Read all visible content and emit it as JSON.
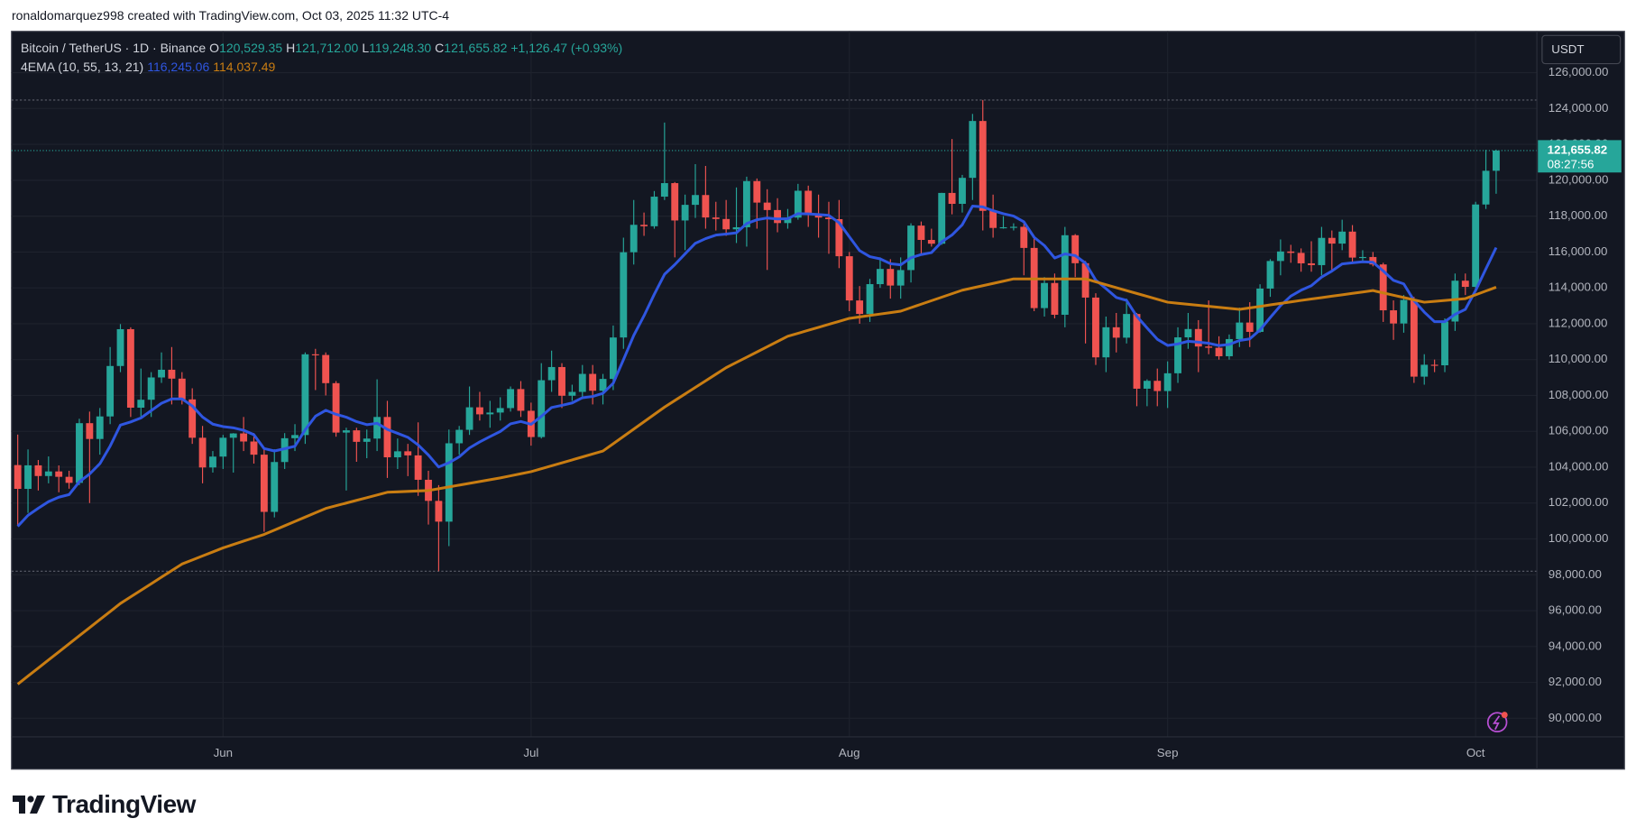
{
  "header": {
    "attribution": "ronaldomarquez998 created with TradingView.com, Oct 03, 2025 11:32 UTC-4"
  },
  "chart_data": {
    "type": "candlestick",
    "symbol": "Bitcoin / TetherUS · 1D · Binance",
    "ohlc_legend": [
      {
        "key": "O",
        "value": "120,529.35"
      },
      {
        "key": "H",
        "value": "121,712.00"
      },
      {
        "key": "L",
        "value": "119,248.30"
      },
      {
        "key": "C",
        "value": "121,655.82"
      }
    ],
    "change": "+1,126.47 (+0.93%)",
    "currency": "USDT",
    "last_price_label": "121,655.82",
    "countdown": "08:27:56",
    "up_color": "#26a69a",
    "down_color": "#ef5350",
    "grid": true,
    "categories": [
      null,
      null,
      null,
      null,
      null,
      null,
      null,
      null,
      null,
      null,
      null,
      null,
      null,
      null,
      null,
      null,
      null,
      null,
      null,
      null,
      "Jun",
      null,
      null,
      null,
      null,
      null,
      null,
      null,
      null,
      null,
      null,
      null,
      null,
      null,
      null,
      null,
      null,
      null,
      null,
      null,
      null,
      null,
      null,
      null,
      null,
      null,
      null,
      null,
      null,
      null,
      "Jul",
      null,
      null,
      null,
      null,
      null,
      null,
      null,
      null,
      null,
      null,
      null,
      null,
      null,
      null,
      null,
      null,
      null,
      null,
      null,
      null,
      null,
      null,
      null,
      null,
      null,
      null,
      null,
      null,
      null,
      null,
      "Aug",
      null,
      null,
      null,
      null,
      null,
      null,
      null,
      null,
      null,
      null,
      null,
      null,
      null,
      null,
      null,
      null,
      null,
      null,
      null,
      null,
      null,
      null,
      null,
      null,
      null,
      null,
      null,
      null,
      null,
      null,
      "Sep",
      null,
      null,
      null,
      null,
      null,
      null,
      null,
      null,
      null,
      null,
      null,
      null,
      null,
      null,
      null,
      null,
      null,
      null,
      null,
      null,
      null,
      null,
      null,
      null,
      null,
      null,
      null,
      null,
      null,
      "Oct",
      null,
      null
    ],
    "open": [
      104118,
      102791,
      104103,
      103507,
      103763,
      103463,
      103126,
      106454,
      105573,
      106830,
      109643,
      111696,
      107318,
      107761,
      109004,
      109434,
      108938,
      107781,
      105641,
      103985,
      104591,
      105642,
      105882,
      105432,
      104697,
      101508,
      104288,
      105615,
      105793,
      110295,
      110257,
      108686,
      105930,
      106055,
      105414,
      105595,
      106800,
      104551,
      104886,
      104658,
      103297,
      102120,
      100963,
      105333,
      106083,
      107340,
      106947,
      107047,
      107296,
      108356,
      107146,
      105681,
      108850,
      109584,
      107984,
      108198,
      109203,
      108262,
      108922,
      111233,
      115987,
      117516,
      117435,
      119086,
      119841,
      117758,
      118630,
      119177,
      117925,
      117840,
      117265,
      117380,
      119954,
      118755,
      118340,
      117614,
      117919,
      119415,
      118062,
      117922,
      117832,
      115764,
      113297,
      112546,
      114208,
      115055,
      114129,
      114992,
      117472,
      116674,
      116462,
      119294,
      118686,
      120134,
      123306,
      118295,
      117342,
      117380,
      117405,
      116227,
      112872,
      114271,
      112500,
      116935,
      115374,
      113458,
      110124,
      111802,
      111222,
      112544,
      108377,
      108816,
      108246,
      109237,
      111240,
      111705,
      110730,
      110659,
      110187,
      111144,
      112066,
      111546,
      113960,
      115498,
      116029,
      115950,
      115368,
      115268,
      116788,
      116468,
      117137,
      115688,
      115721,
      115306,
      112748,
      112014,
      113328,
      109049,
      109712,
      109682,
      112122,
      114400,
      114056,
      118649,
      120529.35
    ],
    "high": [
      105819,
      104990,
      104400,
      104600,
      104100,
      103800,
      106700,
      107100,
      107300,
      110700,
      111980,
      111800,
      109500,
      109300,
      110400,
      110700,
      109300,
      108400,
      106300,
      104900,
      105800,
      105900,
      106800,
      105900,
      105000,
      105000,
      105900,
      106400,
      110400,
      110600,
      110400,
      108800,
      106200,
      106200,
      106100,
      108900,
      107700,
      105600,
      105300,
      106500,
      103800,
      103000,
      106100,
      106300,
      108500,
      108200,
      107700,
      107900,
      108500,
      108800,
      107600,
      109800,
      110500,
      109800,
      108600,
      109700,
      109700,
      109200,
      111900,
      116800,
      118900,
      118200,
      119400,
      123218,
      119900,
      119200,
      120900,
      120800,
      118800,
      118900,
      119600,
      120200,
      120100,
      119500,
      119000,
      118400,
      119800,
      119700,
      119200,
      118800,
      118900,
      116000,
      114100,
      114500,
      115700,
      115600,
      115700,
      117600,
      117700,
      117300,
      119300,
      122300,
      120300,
      123700,
      124474,
      119200,
      118000,
      117600,
      117600,
      116800,
      114600,
      114800,
      117400,
      117000,
      115500,
      113700,
      112400,
      112600,
      113400,
      112600,
      108900,
      109500,
      109900,
      111800,
      112600,
      112200,
      113300,
      111300,
      111400,
      112900,
      113200,
      114200,
      115600,
      116700,
      116400,
      116200,
      116600,
      117400,
      117200,
      117800,
      117500,
      116100,
      116000,
      115400,
      113300,
      113600,
      113500,
      110300,
      110000,
      112300,
      114800,
      114800,
      118800,
      121700,
      121712
    ],
    "low": [
      100718,
      101450,
      102700,
      103100,
      102600,
      102800,
      103000,
      102000,
      104700,
      106400,
      109300,
      106800,
      106800,
      106800,
      108700,
      107500,
      107500,
      105300,
      103100,
      103700,
      103900,
      103700,
      104900,
      104200,
      100400,
      101200,
      103900,
      104900,
      105300,
      108300,
      108000,
      105700,
      102700,
      104300,
      104500,
      104900,
      103400,
      103900,
      103500,
      102400,
      100800,
      98200,
      99600,
      104700,
      105800,
      106600,
      106200,
      106600,
      107100,
      106800,
      105200,
      105600,
      108200,
      107300,
      107700,
      107800,
      107500,
      107500,
      108300,
      110600,
      115300,
      116900,
      117300,
      118900,
      115700,
      116100,
      117900,
      117300,
      117200,
      116900,
      116500,
      116300,
      117300,
      115000,
      117100,
      117300,
      117800,
      117400,
      116800,
      115900,
      115100,
      112700,
      112000,
      112100,
      114000,
      113400,
      113400,
      114300,
      115900,
      116300,
      116400,
      118100,
      118200,
      118900,
      117200,
      116800,
      117300,
      117200,
      114700,
      112700,
      112400,
      112300,
      111800,
      114600,
      110900,
      109700,
      109300,
      110400,
      110900,
      107400,
      107400,
      107400,
      107300,
      108700,
      110600,
      109300,
      110300,
      110000,
      110000,
      110700,
      110700,
      111500,
      113500,
      114700,
      115400,
      114900,
      114900,
      114700,
      114900,
      116100,
      115400,
      115500,
      115200,
      112100,
      111100,
      111500,
      108700,
      108600,
      109300,
      109300,
      111600,
      113600,
      113900,
      118400,
      119248.3
    ],
    "close": [
      102791,
      104103,
      103507,
      103763,
      103463,
      103126,
      106454,
      105573,
      106830,
      109643,
      111696,
      107318,
      107761,
      109004,
      109434,
      108938,
      107781,
      105641,
      103985,
      104591,
      105642,
      105882,
      105432,
      104697,
      101508,
      104288,
      105615,
      105793,
      110295,
      110257,
      108686,
      105930,
      106055,
      105414,
      105595,
      106800,
      104551,
      104886,
      104658,
      103297,
      102120,
      100963,
      105333,
      106083,
      107340,
      106947,
      107047,
      107296,
      108356,
      107146,
      105681,
      108850,
      109584,
      107984,
      108198,
      109203,
      108262,
      108922,
      111233,
      115987,
      117516,
      117435,
      119086,
      119841,
      117758,
      118630,
      119177,
      117925,
      117840,
      117265,
      117380,
      119954,
      118755,
      118340,
      117614,
      117919,
      119415,
      118062,
      117922,
      117832,
      115764,
      113297,
      112546,
      114208,
      115055,
      114129,
      114992,
      117472,
      116674,
      116462,
      119294,
      118686,
      120134,
      123306,
      118295,
      117342,
      117380,
      117405,
      116227,
      112872,
      114271,
      112500,
      116935,
      115374,
      113458,
      110124,
      111802,
      111222,
      112544,
      108377,
      108816,
      108246,
      109237,
      111240,
      111705,
      110730,
      110659,
      110187,
      111144,
      112066,
      111546,
      113960,
      115498,
      116029,
      115950,
      115368,
      115268,
      116788,
      116468,
      117137,
      115688,
      115721,
      115306,
      112748,
      112014,
      113328,
      109049,
      109712,
      109682,
      112122,
      114400,
      114056,
      118649,
      120529.35,
      121655.82
    ],
    "indicator": {
      "name": "4EMA (10, 55, 13, 21)",
      "series": [
        {
          "color": "#2f56e0",
          "last_label": "116,245.06",
          "values": [
            100700,
            101313,
            101708,
            102078,
            102327,
            102471,
            103188,
            103617,
            104195,
            105176,
            106350,
            106524,
            106747,
            107153,
            107564,
            107811,
            107806,
            107416,
            106798,
            106401,
            106264,
            106195,
            106058,
            105813,
            105038,
            104903,
            105031,
            105168,
            106091,
            106841,
            107173,
            106949,
            106788,
            106541,
            106371,
            106448,
            106107,
            105887,
            105666,
            105240,
            104678,
            104009,
            104247,
            104577,
            105074,
            105411,
            105705,
            105991,
            106417,
            106548,
            106392,
            106834,
            107329,
            107447,
            107582,
            107874,
            107944,
            108120,
            108680,
            109995,
            111349,
            112444,
            113640,
            114756,
            115296,
            115896,
            116487,
            116746,
            116943,
            117001,
            117069,
            117588,
            117798,
            117896,
            117845,
            117858,
            118138,
            118124,
            118088,
            118042,
            117632,
            116852,
            116077,
            115741,
            115618,
            115350,
            115286,
            115679,
            115858,
            115967,
            116566,
            116948,
            117521,
            118562,
            118514,
            118303,
            118137,
            118005,
            117685,
            116819,
            116360,
            115665,
            115894,
            115800,
            115378,
            114432,
            113959,
            113466,
            113300,
            112414,
            111766,
            111132,
            110791,
            110872,
            111022,
            110969,
            110913,
            110782,
            110847,
            111066,
            111152,
            111657,
            112348,
            113011,
            113540,
            113869,
            114121,
            114601,
            114937,
            115333,
            115397,
            115455,
            115428,
            114946,
            114418,
            114222,
            113291,
            112647,
            112113,
            112115,
            112526,
            112801,
            113854,
            115056,
            116245.06
          ]
        },
        {
          "color": "#c97d12",
          "last_label": "114,037.49",
          "values": [
            91900,
            92350,
            92800,
            93250,
            93700,
            94150,
            94600,
            95050,
            95500,
            95950,
            96400,
            96767,
            97133,
            97500,
            97867,
            98233,
            98600,
            98825,
            99050,
            99275,
            99500,
            99688,
            99875,
            100063,
            100250,
            100492,
            100733,
            100975,
            101217,
            101458,
            101700,
            101850,
            102000,
            102150,
            102300,
            102450,
            102600,
            102625,
            102650,
            102675,
            102700,
            102800,
            102900,
            103000,
            103100,
            103200,
            103300,
            103400,
            103517,
            103633,
            103750,
            103914,
            104079,
            104243,
            104407,
            104571,
            104736,
            104900,
            105308,
            105717,
            106125,
            106533,
            106942,
            107350,
            107717,
            108083,
            108450,
            108817,
            109183,
            109550,
            109842,
            110133,
            110425,
            110717,
            111008,
            111300,
            111467,
            111633,
            111800,
            111967,
            112133,
            112300,
            112380,
            112460,
            112540,
            112620,
            112700,
            112895,
            113090,
            113285,
            113480,
            113675,
            113870,
            113996,
            114122,
            114248,
            114374,
            114500,
            114500,
            114500,
            114500,
            114500,
            114500,
            114500,
            114500,
            114338,
            114175,
            114013,
            113850,
            113688,
            113525,
            113363,
            113200,
            113143,
            113086,
            113029,
            112971,
            112914,
            112857,
            112800,
            112883,
            112967,
            113050,
            113133,
            113217,
            113300,
            113379,
            113457,
            113536,
            113614,
            113693,
            113771,
            113850,
            113720,
            113590,
            113460,
            113330,
            113200,
            113250,
            113300,
            113350,
            113400,
            113613,
            113825,
            114037.49
          ]
        }
      ]
    },
    "ylim": [
      88964,
      128307
    ],
    "yticks": [
      {
        "value": 90000,
        "label": "90,000.00"
      },
      {
        "value": 92000,
        "label": "92,000.00"
      },
      {
        "value": 94000,
        "label": "94,000.00"
      },
      {
        "value": 96000,
        "label": "96,000.00"
      },
      {
        "value": 98000,
        "label": "98,000.00"
      },
      {
        "value": 100000,
        "label": "100,000.00"
      },
      {
        "value": 102000,
        "label": "102,000.00"
      },
      {
        "value": 104000,
        "label": "104,000.00"
      },
      {
        "value": 106000,
        "label": "106,000.00"
      },
      {
        "value": 108000,
        "label": "108,000.00"
      },
      {
        "value": 110000,
        "label": "110,000.00"
      },
      {
        "value": 112000,
        "label": "112,000.00"
      },
      {
        "value": 114000,
        "label": "114,000.00"
      },
      {
        "value": 116000,
        "label": "116,000.00"
      },
      {
        "value": 118000,
        "label": "118,000.00"
      },
      {
        "value": 120000,
        "label": "120,000.00"
      },
      {
        "value": 122000,
        "label": "122,000.00"
      },
      {
        "value": 124000,
        "label": "124,000.00"
      },
      {
        "value": 126000,
        "label": "126,000.00"
      }
    ]
  },
  "footer": {
    "logo": "TradingView"
  }
}
